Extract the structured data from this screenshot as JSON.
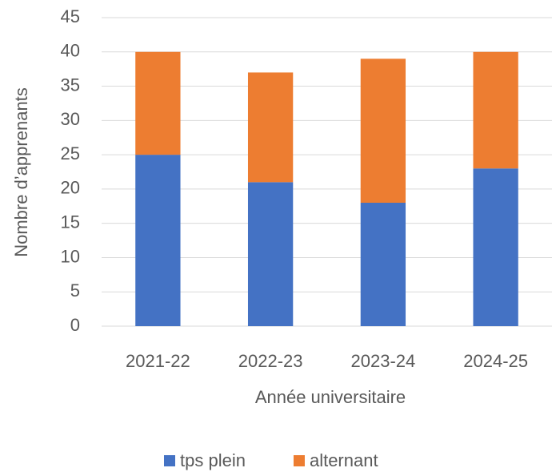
{
  "chart_data": {
    "type": "stacked_bar",
    "categories": [
      "2021-22",
      "2022-23",
      "2023-24",
      "2024-25"
    ],
    "series": [
      {
        "name": "tps plein",
        "color": "#4472c4",
        "values": [
          25,
          21,
          18,
          23
        ]
      },
      {
        "name": "alternant",
        "color": "#ed7d31",
        "values": [
          15,
          16,
          21,
          17
        ]
      }
    ],
    "xlabel": "Année universitaire",
    "ylabel": "Nombre d’apprenants",
    "ylim": [
      0,
      45
    ],
    "yticks": [
      0,
      5,
      10,
      15,
      20,
      25,
      30,
      35,
      40,
      45
    ],
    "grid": true,
    "legend": "bottom"
  }
}
